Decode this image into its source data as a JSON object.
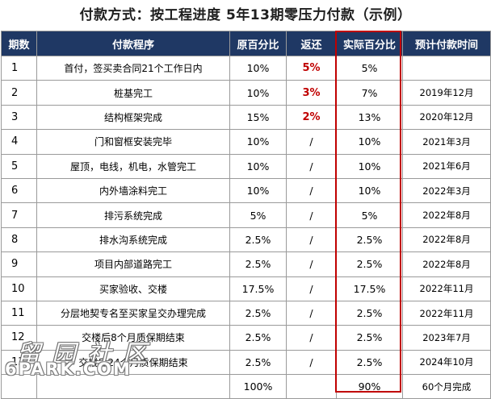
{
  "title": "付款方式：按工程进度 5年13期零压力付款（示例）",
  "headers": [
    "期数",
    "付款程序",
    "原百分比",
    "返还",
    "实际百分比",
    "预计付款时间"
  ],
  "rows": [
    {
      "no": "1",
      "step": "首付，签买卖合同21个工作日内",
      "orig": "10%",
      "rebate": "5%",
      "actual": "5%",
      "date": ""
    },
    {
      "no": "2",
      "step": "桩基完工",
      "orig": "10%",
      "rebate": "3%",
      "actual": "7%",
      "date": "2019年12月"
    },
    {
      "no": "3",
      "step": "结构框架完成",
      "orig": "15%",
      "rebate": "2%",
      "actual": "13%",
      "date": "2020年12月"
    },
    {
      "no": "4",
      "step": "门和窗框安装完毕",
      "orig": "10%",
      "rebate": "/",
      "actual": "10%",
      "date": "2021年3月"
    },
    {
      "no": "5",
      "step": "屋顶，电线，机电，水管完工",
      "orig": "10%",
      "rebate": "/",
      "actual": "10%",
      "date": "2021年6月"
    },
    {
      "no": "6",
      "step": "内外墙涂料完工",
      "orig": "10%",
      "rebate": "/",
      "actual": "10%",
      "date": "2022年3月"
    },
    {
      "no": "7",
      "step": "排污系统完成",
      "orig": "5%",
      "rebate": "/",
      "actual": "5%",
      "date": "2022年8月"
    },
    {
      "no": "8",
      "step": "排水沟系统完成",
      "orig": "2.5%",
      "rebate": "/",
      "actual": "2.5%",
      "date": "2022年8月"
    },
    {
      "no": "9",
      "step": "项目内部道路完工",
      "orig": "2.5%",
      "rebate": "/",
      "actual": "2.5%",
      "date": "2022年8月"
    },
    {
      "no": "10",
      "step": "买家验收、交楼",
      "orig": "17.5%",
      "rebate": "/",
      "actual": "17.5%",
      "date": "2022年11月"
    },
    {
      "no": "11",
      "step": "分层地契专名至买家呈交办理完成",
      "orig": "2.5%",
      "rebate": "/",
      "actual": "2.5%",
      "date": "2022年11月"
    },
    {
      "no": "12",
      "step": "交楼后8个月质保期结束",
      "orig": "2.5%",
      "rebate": "/",
      "actual": "2.5%",
      "date": "2023年7月"
    },
    {
      "no": "13",
      "step": "交楼后24个月质保期结束",
      "orig": "2.5%",
      "rebate": "/",
      "actual": "2.5%",
      "date": "2024年10月"
    }
  ],
  "total": {
    "no": "",
    "step": "",
    "orig": "100%",
    "rebate": "",
    "actual": "90%",
    "date": "60个月完成"
  },
  "watermark": {
    "cn": "留园社区",
    "en": "6PARK.COM"
  },
  "colors": {
    "header_bg": "#1f3864",
    "header_text": "#ffffff",
    "rebate_red": "#c00000",
    "highlight_frame": "#c00000"
  }
}
